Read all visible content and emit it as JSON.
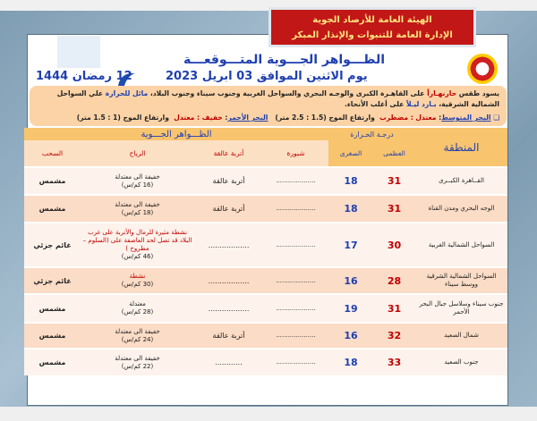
{
  "header": {
    "org_line1": "الهيئة العامة للأرصاد الجوية",
    "org_line2": "الإدارة العامة للتنبوات والإنذار المبكر",
    "title": "الظـــواهر الجـــوية المتـــوقعـــة",
    "date": "يوم الاثنين الموافق 03 ابريل 2023",
    "hijri": "12 رمضان  1444"
  },
  "summary": {
    "p1": "يسود طقس ",
    "hot": "حارنهـاراً",
    "p2": " على القاهـرة الكبرى والوجـه البحري والسواحل الغربية وجنوب سيناء وجنوب البلاد، ",
    "mild": "مائل للحرارة",
    "p3": " علي السواحل الشمالية الشرقية، ",
    "cold": "بـارد ليـلاً",
    "p4": " على أغلب الأنحاء.",
    "med_label": "البحر المتوسط",
    "med_state": "معتدل : مضطرب",
    "med_wave": "وارتفاع الموج (1.5 : 2.5 متر)",
    "red_label": "البحر الأحمر",
    "red_state": "خفيف : معتدل",
    "red_wave": "وارتفاع الموج (1 : 1.5 متر)"
  },
  "table": {
    "region": "المنطقة",
    "temp": "درجـة الحـرارة",
    "max": "العظمى",
    "min": "الصغرى",
    "phenomena": "الظـــواهر الجـــوية",
    "fog": "شبورة",
    "dust": "أتربة عالقة",
    "wind": "الرياح",
    "cloud": "السحب",
    "rows": [
      {
        "region": "القــاهرة الكبــرى",
        "max": "31",
        "min": "18",
        "fog": "....................",
        "dust": "أتربة عالقة",
        "wind": "خفيفة الى معتدلة",
        "speed": "(16 كم/س)",
        "cloud": "مشمس"
      },
      {
        "region": "الوجه البحري ومدن القناة",
        "max": "31",
        "min": "18",
        "fog": "....................",
        "dust": "أتربة عالقة",
        "wind": "خفيفة الى معتدلة",
        "speed": "(18 كم/س)",
        "cloud": "مشمس"
      },
      {
        "region": "السواحل الشمالية الغربية",
        "max": "30",
        "min": "17",
        "fog": "....................",
        "dust": "..................",
        "wind": "نشطة مثيرة للرمال والأتربة على غرب البلاد قد تصل لحد العاصفة على (السلوم – مطروح )",
        "speed": "(46 كم/س)",
        "cloud": "غائم جزئي",
        "warn": true
      },
      {
        "region": "السواحل الشمالية الشرقية ووسط سيناء",
        "max": "28",
        "min": "16",
        "fog": "....................",
        "dust": "..................",
        "wind": "نشطة",
        "speed": "(30 كم/س)",
        "cloud": "غائم جزئي",
        "warn": true
      },
      {
        "region": "جنوب سيناء وسلاسل جبال البحر الأحمر",
        "max": "31",
        "min": "19",
        "fog": "....................",
        "dust": "..................",
        "wind": "معتدلة",
        "speed": "(28 كم/س)",
        "cloud": "مشمس"
      },
      {
        "region": "شمال الصعيد",
        "max": "32",
        "min": "16",
        "fog": "....................",
        "dust": "أتربة عالقة",
        "wind": "خفيفة الى معتدلة",
        "speed": "(24 كم/س)",
        "cloud": "مشمس"
      },
      {
        "region": "جنوب الصعيد",
        "max": "33",
        "min": "18",
        "fog": "....................",
        "dust": "............",
        "wind": "خفيفة الى معتدلة",
        "speed": "(22 كم/س)",
        "cloud": "مشمس"
      }
    ]
  },
  "colors": {
    "accent_red": "#c00000",
    "accent_blue": "#1f3fb0",
    "header_orange": "#f9c46e"
  }
}
